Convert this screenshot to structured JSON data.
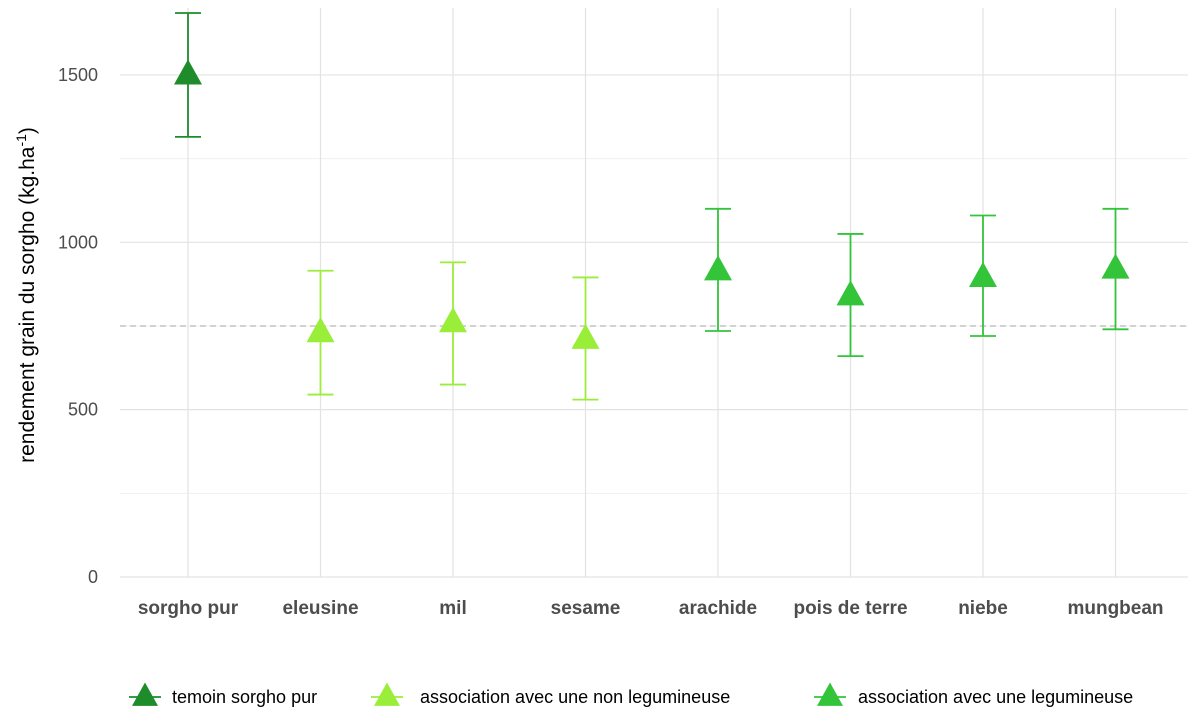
{
  "chart_data": {
    "type": "scatter",
    "ylabel": "rendement grain du sorgho (kg.ha",
    "ylabel_sup": "-1",
    "ylabel_close": ")",
    "ylim": [
      0,
      1700
    ],
    "yticks": [
      0,
      500,
      1000,
      1500
    ],
    "grid": true,
    "legend_position": "bottom",
    "reference_line": {
      "y": 750,
      "style": "dashed"
    },
    "categories": [
      "sorgho pur",
      "eleusine",
      "mil",
      "sesame",
      "arachide",
      "pois de terre",
      "niebe",
      "mungbean"
    ],
    "series": [
      {
        "name": "temoin sorgho pur",
        "color": "#1e8c2a",
        "points": [
          {
            "x": "sorgho pur",
            "y": 1500,
            "ymin": 1315,
            "ymax": 1685
          }
        ]
      },
      {
        "name": "association avec une non legumineuse",
        "color": "#9aee3a",
        "points": [
          {
            "x": "eleusine",
            "y": 730,
            "ymin": 545,
            "ymax": 915
          },
          {
            "x": "mil",
            "y": 760,
            "ymin": 575,
            "ymax": 940
          },
          {
            "x": "sesame",
            "y": 710,
            "ymin": 530,
            "ymax": 895
          }
        ]
      },
      {
        "name": "association avec une legumineuse",
        "color": "#33c43a",
        "points": [
          {
            "x": "arachide",
            "y": 915,
            "ymin": 735,
            "ymax": 1100
          },
          {
            "x": "pois de terre",
            "y": 840,
            "ymin": 660,
            "ymax": 1025
          },
          {
            "x": "niebe",
            "y": 895,
            "ymin": 720,
            "ymax": 1080
          },
          {
            "x": "mungbean",
            "y": 920,
            "ymin": 740,
            "ymax": 1100
          }
        ]
      }
    ]
  }
}
